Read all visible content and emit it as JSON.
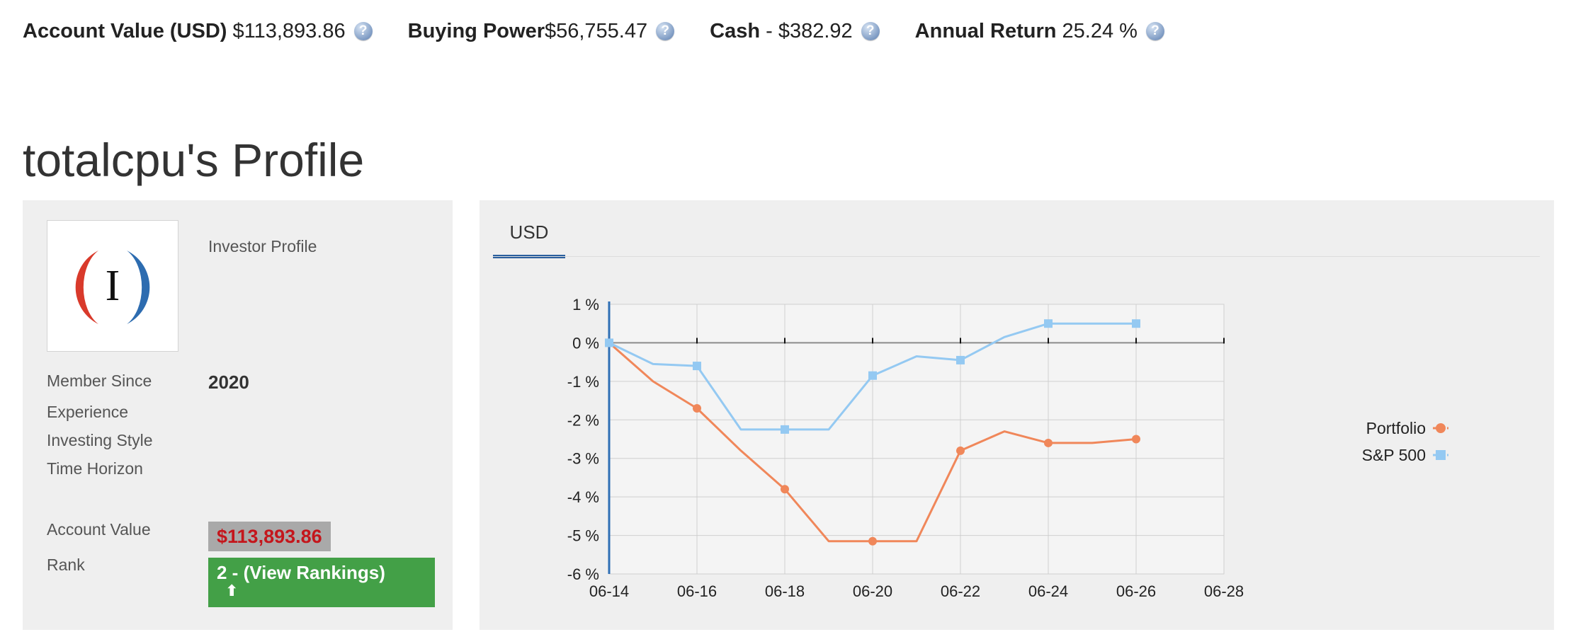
{
  "stats": [
    {
      "label": "Account Value (USD)",
      "value": "$113,893.86"
    },
    {
      "label": "Buying Power",
      "value": "$56,755.47"
    },
    {
      "label": "Cash",
      "value": "- $382.92"
    },
    {
      "label": "Annual Return",
      "value": "25.24 %"
    }
  ],
  "help_glyph": "?",
  "profile": {
    "title": "totalcpu's Profile",
    "heading": "Investor Profile",
    "logo_letter": "I",
    "member_since_label": "Member Since",
    "member_since_value": "2020",
    "experience_label": "Experience",
    "investing_style_label": "Investing Style",
    "time_horizon_label": "Time Horizon",
    "account_value_label": "Account Value",
    "account_value": "$113,893.86",
    "rank_label": "Rank",
    "rank_value": "2 - (View Rankings)",
    "rank_arrow": "⬆"
  },
  "chart_tab": "USD",
  "colors": {
    "portfolio": "#f0875a",
    "sp500": "#94c9f2",
    "rank_green": "#43a047",
    "badge_red": "#c4161c"
  },
  "chart_data": {
    "type": "line",
    "x_ticks": [
      "06-14",
      "06-16",
      "06-18",
      "06-20",
      "06-22",
      "06-24",
      "06-26",
      "06-28"
    ],
    "y_ticks": [
      "1 %",
      "0 %",
      "-1 %",
      "-2 %",
      "-3 %",
      "-4 %",
      "-5 %",
      "-6 %"
    ],
    "ylim": [
      -6,
      1
    ],
    "x_range": [
      "06-14",
      "06-28"
    ],
    "grid": true,
    "legend": "right",
    "series": [
      {
        "name": "Portfolio",
        "x": [
          "06-14",
          "06-15",
          "06-16",
          "06-17",
          "06-18",
          "06-19",
          "06-20",
          "06-21",
          "06-22",
          "06-23",
          "06-24",
          "06-25",
          "06-26"
        ],
        "values": [
          0,
          -1.0,
          -1.7,
          -2.8,
          -3.8,
          -5.15,
          -5.15,
          -5.15,
          -2.8,
          -2.3,
          -2.6,
          -2.6,
          -2.5
        ],
        "markers": [
          "06-14",
          "06-16",
          "06-18",
          "06-20",
          "06-22",
          "06-24",
          "06-26"
        ]
      },
      {
        "name": "S&P 500",
        "x": [
          "06-14",
          "06-15",
          "06-16",
          "06-17",
          "06-18",
          "06-19",
          "06-20",
          "06-21",
          "06-22",
          "06-23",
          "06-24",
          "06-25",
          "06-26"
        ],
        "values": [
          0,
          -0.55,
          -0.6,
          -2.25,
          -2.25,
          -2.25,
          -0.85,
          -0.35,
          -0.45,
          0.15,
          0.5,
          0.5,
          0.5
        ],
        "markers": [
          "06-14",
          "06-16",
          "06-18",
          "06-20",
          "06-22",
          "06-24",
          "06-26"
        ]
      }
    ]
  }
}
